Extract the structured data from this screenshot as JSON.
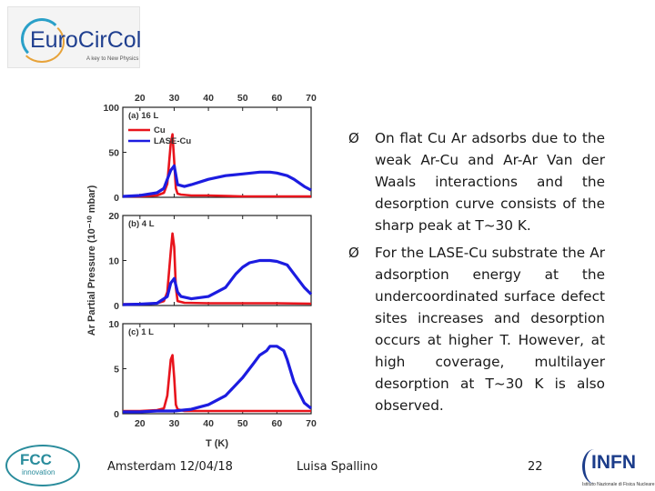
{
  "logo": {
    "text": "EuroCirCol",
    "tagline": "A key to New Physics",
    "icon": "eurocircol-logo"
  },
  "bullets": [
    "On flat Cu Ar adsorbs due to the weak Ar-Cu and Ar-Ar Van der Waals interactions and the desorption curve consists of the sharp peak at T~30 K.",
    "For the LASE-Cu substrate the Ar adsorption energy at the undercoordinated surface defect sites increases and desorption occurs at higher T. However, at high coverage, multilayer desorption at T~30 K is also observed."
  ],
  "bullet_marker": "Ø",
  "footer": {
    "location_date": "Amsterdam 12/04/18",
    "author": "Luisa Spallino",
    "page": "22",
    "fcc_logo": "FCC",
    "fcc_sub": "innovation",
    "infn_logo": "INFN",
    "infn_sub": "Istituto Nazionale di Fisica Nucleare"
  },
  "chart_data": {
    "type": "line",
    "xlabel": "T (K)",
    "ylabel": "Ar Partial Pressure (10⁻¹⁰ mbar)",
    "xlim": [
      15,
      70
    ],
    "x_ticks": [
      "20",
      "30",
      "40",
      "50",
      "60",
      "70"
    ],
    "legend": [
      "Cu",
      "LASE-Cu"
    ],
    "colors": {
      "Cu": "#e8141c",
      "LASE-Cu": "#1c1ce0"
    },
    "legend_placement": "top-left",
    "panels": [
      {
        "label": "(a) 16 L",
        "ylim": [
          0,
          100
        ],
        "y_ticks": [
          "0",
          "50",
          "100"
        ],
        "series": [
          {
            "name": "Cu",
            "x": [
              15,
              20,
              25,
              27,
              28,
              29,
              29.5,
              30,
              30.5,
              31,
              32,
              35,
              40,
              50,
              60,
              70
            ],
            "y": [
              1,
              1,
              2,
              5,
              15,
              60,
              70,
              40,
              10,
              4,
              3,
              2,
              2,
              1,
              1,
              1
            ]
          },
          {
            "name": "LASE-Cu",
            "x": [
              15,
              20,
              25,
              27,
              28,
              29,
              30,
              31,
              33,
              35,
              40,
              45,
              50,
              55,
              58,
              60,
              63,
              65,
              68,
              70
            ],
            "y": [
              1,
              2,
              5,
              10,
              20,
              30,
              35,
              14,
              12,
              14,
              20,
              24,
              26,
              28,
              28,
              27,
              24,
              20,
              12,
              8
            ]
          }
        ]
      },
      {
        "label": "(b) 4 L",
        "ylim": [
          0,
          20
        ],
        "y_ticks": [
          "0",
          "10",
          "20"
        ],
        "series": [
          {
            "name": "Cu",
            "x": [
              15,
              20,
              25,
              27,
              28,
              29,
              29.5,
              30,
              30.5,
              31,
              33,
              40,
              50,
              60,
              70
            ],
            "y": [
              0.3,
              0.3,
              0.5,
              1,
              3,
              12,
              16,
              13,
              4,
              1,
              0.6,
              0.5,
              0.5,
              0.5,
              0.4
            ]
          },
          {
            "name": "LASE-Cu",
            "x": [
              15,
              20,
              25,
              28,
              29,
              30,
              31,
              32,
              35,
              40,
              45,
              48,
              50,
              52,
              55,
              58,
              60,
              63,
              65,
              68,
              70
            ],
            "y": [
              0.2,
              0.3,
              0.5,
              2,
              5,
              6,
              3,
              2,
              1.5,
              2,
              4,
              7,
              8.5,
              9.5,
              10,
              10,
              9.8,
              9,
              7,
              4,
              2.5
            ]
          }
        ]
      },
      {
        "label": "(c) 1 L",
        "ylim": [
          0,
          10
        ],
        "y_ticks": [
          "0",
          "5",
          "10"
        ],
        "series": [
          {
            "name": "Cu",
            "x": [
              15,
              20,
              25,
              27,
              28,
              29,
              29.5,
              30,
              30.5,
              31,
              33,
              40,
              50,
              60,
              70
            ],
            "y": [
              0.3,
              0.3,
              0.4,
              0.6,
              2,
              6,
              6.5,
              4,
              1,
              0.5,
              0.3,
              0.3,
              0.3,
              0.3,
              0.3
            ]
          },
          {
            "name": "LASE-Cu",
            "x": [
              15,
              20,
              25,
              30,
              35,
              40,
              45,
              50,
              53,
              55,
              57,
              58,
              60,
              62,
              63,
              65,
              68,
              70
            ],
            "y": [
              0.2,
              0.2,
              0.3,
              0.3,
              0.5,
              1,
              2,
              4,
              5.5,
              6.5,
              7,
              7.5,
              7.5,
              7,
              6,
              3.5,
              1.2,
              0.6
            ]
          }
        ]
      }
    ]
  }
}
